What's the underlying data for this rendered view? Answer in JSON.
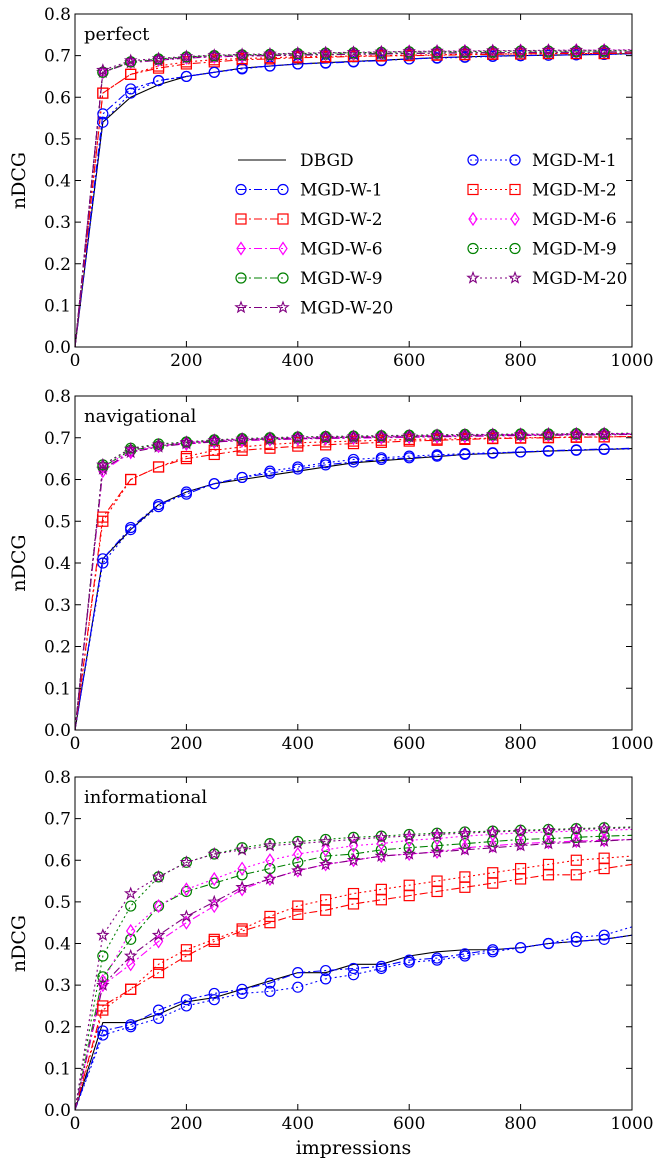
{
  "chart_data": [
    {
      "type": "line",
      "panel_label": "perfect",
      "ylabel": "nDCG",
      "xlabel": "",
      "xlim": [
        0,
        1000
      ],
      "ylim": [
        0.0,
        0.8
      ],
      "x_ticks": [
        "0",
        "200",
        "400",
        "600",
        "800",
        "1000"
      ],
      "y_ticks": [
        "0.0",
        "0.1",
        "0.2",
        "0.3",
        "0.4",
        "0.5",
        "0.6",
        "0.7",
        "0.8"
      ],
      "grid": false,
      "legend_position": "center-right",
      "x": [
        0,
        50,
        100,
        150,
        200,
        250,
        300,
        350,
        400,
        450,
        500,
        550,
        600,
        650,
        700,
        750,
        800,
        850,
        900,
        950,
        1000
      ],
      "series": [
        {
          "name": "DBGD",
          "values": [
            0.0,
            0.54,
            0.6,
            0.63,
            0.65,
            0.66,
            0.67,
            0.675,
            0.68,
            0.683,
            0.686,
            0.689,
            0.692,
            0.695,
            0.697,
            0.699,
            0.7,
            0.701,
            0.702,
            0.703,
            0.705
          ]
        },
        {
          "name": "MGD-W-1",
          "values": [
            0.0,
            0.56,
            0.62,
            0.64,
            0.65,
            0.66,
            0.67,
            0.675,
            0.68,
            0.682,
            0.685,
            0.688,
            0.692,
            0.695,
            0.697,
            0.699,
            0.7,
            0.701,
            0.702,
            0.703,
            0.705
          ]
        },
        {
          "name": "MGD-W-2",
          "values": [
            0.0,
            0.61,
            0.655,
            0.67,
            0.68,
            0.685,
            0.69,
            0.692,
            0.695,
            0.696,
            0.698,
            0.699,
            0.7,
            0.701,
            0.702,
            0.703,
            0.704,
            0.705,
            0.705,
            0.705,
            0.706
          ]
        },
        {
          "name": "MGD-W-6",
          "values": [
            0.0,
            0.66,
            0.685,
            0.69,
            0.695,
            0.697,
            0.699,
            0.7,
            0.702,
            0.703,
            0.704,
            0.705,
            0.706,
            0.706,
            0.707,
            0.707,
            0.708,
            0.708,
            0.708,
            0.709,
            0.709
          ]
        },
        {
          "name": "MGD-W-9",
          "values": [
            0.0,
            0.66,
            0.685,
            0.69,
            0.696,
            0.698,
            0.7,
            0.701,
            0.702,
            0.703,
            0.704,
            0.705,
            0.706,
            0.706,
            0.707,
            0.707,
            0.708,
            0.708,
            0.709,
            0.709,
            0.709
          ]
        },
        {
          "name": "MGD-W-20",
          "values": [
            0.0,
            0.66,
            0.683,
            0.689,
            0.694,
            0.697,
            0.699,
            0.7,
            0.701,
            0.702,
            0.703,
            0.704,
            0.705,
            0.706,
            0.706,
            0.707,
            0.707,
            0.708,
            0.708,
            0.708,
            0.709
          ]
        },
        {
          "name": "MGD-M-1",
          "values": [
            0.0,
            0.54,
            0.61,
            0.64,
            0.65,
            0.66,
            0.668,
            0.675,
            0.68,
            0.683,
            0.686,
            0.689,
            0.692,
            0.694,
            0.696,
            0.698,
            0.7,
            0.701,
            0.702,
            0.703,
            0.704
          ]
        },
        {
          "name": "MGD-M-2",
          "values": [
            0.0,
            0.61,
            0.655,
            0.675,
            0.685,
            0.69,
            0.693,
            0.695,
            0.697,
            0.698,
            0.699,
            0.7,
            0.701,
            0.702,
            0.703,
            0.704,
            0.704,
            0.705,
            0.705,
            0.705,
            0.706
          ]
        },
        {
          "name": "MGD-M-6",
          "values": [
            0.0,
            0.66,
            0.685,
            0.69,
            0.695,
            0.698,
            0.7,
            0.702,
            0.704,
            0.706,
            0.707,
            0.708,
            0.71,
            0.71,
            0.711,
            0.711,
            0.712,
            0.712,
            0.713,
            0.713,
            0.713
          ]
        },
        {
          "name": "MGD-M-9",
          "values": [
            0.0,
            0.66,
            0.685,
            0.692,
            0.697,
            0.7,
            0.702,
            0.703,
            0.705,
            0.706,
            0.707,
            0.708,
            0.709,
            0.709,
            0.71,
            0.71,
            0.711,
            0.711,
            0.711,
            0.712,
            0.712
          ]
        },
        {
          "name": "MGD-M-20",
          "values": [
            0.0,
            0.665,
            0.688,
            0.693,
            0.698,
            0.701,
            0.703,
            0.704,
            0.706,
            0.707,
            0.708,
            0.709,
            0.71,
            0.711,
            0.711,
            0.712,
            0.712,
            0.713,
            0.713,
            0.713,
            0.714
          ]
        }
      ]
    },
    {
      "type": "line",
      "panel_label": "navigational",
      "ylabel": "nDCG",
      "xlabel": "",
      "xlim": [
        0,
        1000
      ],
      "ylim": [
        0.0,
        0.8
      ],
      "x_ticks": [
        "0",
        "200",
        "400",
        "600",
        "800",
        "1000"
      ],
      "y_ticks": [
        "0.0",
        "0.1",
        "0.2",
        "0.3",
        "0.4",
        "0.5",
        "0.6",
        "0.7",
        "0.8"
      ],
      "grid": false,
      "x": [
        0,
        50,
        100,
        150,
        200,
        250,
        300,
        350,
        400,
        450,
        500,
        550,
        600,
        650,
        700,
        750,
        800,
        850,
        900,
        950,
        1000
      ],
      "series": [
        {
          "name": "DBGD",
          "values": [
            0.0,
            0.41,
            0.48,
            0.54,
            0.57,
            0.59,
            0.6,
            0.61,
            0.62,
            0.63,
            0.64,
            0.645,
            0.65,
            0.655,
            0.66,
            0.662,
            0.665,
            0.668,
            0.67,
            0.672,
            0.674
          ]
        },
        {
          "name": "MGD-W-1",
          "values": [
            0.0,
            0.41,
            0.485,
            0.54,
            0.565,
            0.59,
            0.605,
            0.615,
            0.625,
            0.635,
            0.642,
            0.648,
            0.652,
            0.656,
            0.66,
            0.663,
            0.666,
            0.669,
            0.671,
            0.673,
            0.675
          ]
        },
        {
          "name": "MGD-W-2",
          "values": [
            0.0,
            0.51,
            0.6,
            0.63,
            0.65,
            0.66,
            0.67,
            0.675,
            0.68,
            0.683,
            0.686,
            0.689,
            0.692,
            0.694,
            0.696,
            0.698,
            0.699,
            0.7,
            0.701,
            0.702,
            0.703
          ]
        },
        {
          "name": "MGD-W-6",
          "values": [
            0.0,
            0.62,
            0.665,
            0.68,
            0.685,
            0.69,
            0.693,
            0.695,
            0.697,
            0.698,
            0.699,
            0.7,
            0.701,
            0.702,
            0.703,
            0.704,
            0.705,
            0.706,
            0.707,
            0.707,
            0.708
          ]
        },
        {
          "name": "MGD-W-9",
          "values": [
            0.0,
            0.63,
            0.67,
            0.68,
            0.688,
            0.692,
            0.695,
            0.697,
            0.699,
            0.7,
            0.701,
            0.702,
            0.703,
            0.704,
            0.705,
            0.706,
            0.707,
            0.707,
            0.708,
            0.708,
            0.709
          ]
        },
        {
          "name": "MGD-W-20",
          "values": [
            0.0,
            0.625,
            0.665,
            0.678,
            0.686,
            0.69,
            0.694,
            0.696,
            0.698,
            0.699,
            0.7,
            0.701,
            0.702,
            0.703,
            0.704,
            0.705,
            0.706,
            0.706,
            0.707,
            0.707,
            0.708
          ]
        },
        {
          "name": "MGD-M-1",
          "values": [
            0.0,
            0.4,
            0.48,
            0.535,
            0.57,
            0.59,
            0.605,
            0.62,
            0.63,
            0.64,
            0.648,
            0.652,
            0.656,
            0.659,
            0.662,
            0.664,
            0.666,
            0.668,
            0.67,
            0.672,
            0.673
          ]
        },
        {
          "name": "MGD-M-2",
          "values": [
            0.0,
            0.5,
            0.6,
            0.63,
            0.655,
            0.67,
            0.678,
            0.684,
            0.688,
            0.69,
            0.692,
            0.694,
            0.696,
            0.697,
            0.698,
            0.699,
            0.7,
            0.701,
            0.702,
            0.702,
            0.703
          ]
        },
        {
          "name": "MGD-M-6",
          "values": [
            0.0,
            0.63,
            0.668,
            0.68,
            0.688,
            0.693,
            0.696,
            0.698,
            0.7,
            0.701,
            0.702,
            0.703,
            0.704,
            0.705,
            0.706,
            0.707,
            0.708,
            0.708,
            0.709,
            0.709,
            0.71
          ]
        },
        {
          "name": "MGD-M-9",
          "values": [
            0.0,
            0.635,
            0.675,
            0.685,
            0.69,
            0.695,
            0.698,
            0.7,
            0.702,
            0.703,
            0.704,
            0.705,
            0.706,
            0.707,
            0.708,
            0.708,
            0.709,
            0.709,
            0.71,
            0.71,
            0.711
          ]
        },
        {
          "name": "MGD-M-20",
          "values": [
            0.0,
            0.635,
            0.673,
            0.683,
            0.689,
            0.694,
            0.697,
            0.699,
            0.701,
            0.702,
            0.703,
            0.704,
            0.705,
            0.706,
            0.707,
            0.708,
            0.708,
            0.709,
            0.709,
            0.71,
            0.71
          ]
        }
      ]
    },
    {
      "type": "line",
      "panel_label": "informational",
      "ylabel": "nDCG",
      "xlabel": "impressions",
      "xlim": [
        0,
        1000
      ],
      "ylim": [
        0.0,
        0.8
      ],
      "x_ticks": [
        "0",
        "200",
        "400",
        "600",
        "800",
        "1000"
      ],
      "y_ticks": [
        "0.0",
        "0.1",
        "0.2",
        "0.3",
        "0.4",
        "0.5",
        "0.6",
        "0.7",
        "0.8"
      ],
      "grid": false,
      "x": [
        0,
        50,
        100,
        150,
        200,
        250,
        300,
        350,
        400,
        450,
        500,
        550,
        600,
        650,
        700,
        750,
        800,
        850,
        900,
        950,
        1000
      ],
      "series": [
        {
          "name": "DBGD",
          "values": [
            0.0,
            0.21,
            0.21,
            0.23,
            0.26,
            0.27,
            0.29,
            0.31,
            0.33,
            0.33,
            0.35,
            0.35,
            0.37,
            0.38,
            0.385,
            0.385,
            0.39,
            0.4,
            0.405,
            0.41,
            0.42
          ]
        },
        {
          "name": "MGD-W-1",
          "values": [
            0.0,
            0.19,
            0.205,
            0.24,
            0.265,
            0.28,
            0.29,
            0.305,
            0.33,
            0.335,
            0.34,
            0.345,
            0.36,
            0.365,
            0.375,
            0.385,
            0.39,
            0.4,
            0.405,
            0.41,
            0.42
          ]
        },
        {
          "name": "MGD-W-2",
          "values": [
            0.0,
            0.25,
            0.29,
            0.33,
            0.37,
            0.405,
            0.43,
            0.45,
            0.47,
            0.48,
            0.495,
            0.505,
            0.515,
            0.525,
            0.535,
            0.545,
            0.555,
            0.565,
            0.565,
            0.58,
            0.59
          ]
        },
        {
          "name": "MGD-W-6",
          "values": [
            0.0,
            0.3,
            0.35,
            0.405,
            0.45,
            0.49,
            0.53,
            0.555,
            0.575,
            0.59,
            0.6,
            0.61,
            0.615,
            0.62,
            0.63,
            0.635,
            0.64,
            0.643,
            0.646,
            0.648,
            0.65
          ]
        },
        {
          "name": "MGD-W-9",
          "values": [
            0.0,
            0.32,
            0.41,
            0.49,
            0.525,
            0.545,
            0.565,
            0.58,
            0.595,
            0.61,
            0.615,
            0.625,
            0.63,
            0.635,
            0.64,
            0.645,
            0.65,
            0.652,
            0.655,
            0.658,
            0.66
          ]
        },
        {
          "name": "MGD-W-20",
          "values": [
            0.0,
            0.3,
            0.37,
            0.42,
            0.465,
            0.5,
            0.535,
            0.555,
            0.575,
            0.59,
            0.6,
            0.61,
            0.615,
            0.62,
            0.625,
            0.63,
            0.635,
            0.64,
            0.643,
            0.646,
            0.65
          ]
        },
        {
          "name": "MGD-M-1",
          "values": [
            0.0,
            0.18,
            0.2,
            0.22,
            0.25,
            0.265,
            0.28,
            0.285,
            0.295,
            0.315,
            0.325,
            0.34,
            0.355,
            0.36,
            0.37,
            0.38,
            0.39,
            0.4,
            0.415,
            0.42,
            0.44
          ]
        },
        {
          "name": "MGD-M-2",
          "values": [
            0.0,
            0.24,
            0.29,
            0.35,
            0.385,
            0.41,
            0.435,
            0.465,
            0.49,
            0.505,
            0.52,
            0.53,
            0.54,
            0.55,
            0.56,
            0.57,
            0.58,
            0.59,
            0.6,
            0.605,
            0.61
          ]
        },
        {
          "name": "MGD-M-6",
          "values": [
            0.0,
            0.31,
            0.43,
            0.49,
            0.53,
            0.555,
            0.58,
            0.6,
            0.615,
            0.625,
            0.635,
            0.64,
            0.648,
            0.652,
            0.658,
            0.662,
            0.666,
            0.668,
            0.67,
            0.672,
            0.674
          ]
        },
        {
          "name": "MGD-M-9",
          "values": [
            0.0,
            0.37,
            0.49,
            0.56,
            0.595,
            0.615,
            0.63,
            0.64,
            0.645,
            0.65,
            0.655,
            0.658,
            0.662,
            0.665,
            0.668,
            0.67,
            0.672,
            0.674,
            0.676,
            0.678,
            0.68
          ]
        },
        {
          "name": "MGD-M-20",
          "values": [
            0.0,
            0.42,
            0.52,
            0.56,
            0.595,
            0.615,
            0.625,
            0.635,
            0.64,
            0.645,
            0.65,
            0.655,
            0.658,
            0.662,
            0.665,
            0.668,
            0.67,
            0.672,
            0.674,
            0.676,
            0.678
          ]
        }
      ]
    }
  ],
  "series_styles": {
    "DBGD": {
      "color": "#000000",
      "dash": "solid",
      "marker": "none"
    },
    "MGD-W-1": {
      "color": "#0000ff",
      "dash": "dash-dot",
      "marker": "circle"
    },
    "MGD-W-2": {
      "color": "#ff0000",
      "dash": "dash-dot",
      "marker": "square"
    },
    "MGD-W-6": {
      "color": "#ff00ff",
      "dash": "dash-dot",
      "marker": "diamond"
    },
    "MGD-W-9": {
      "color": "#008000",
      "dash": "dash-dot",
      "marker": "circle"
    },
    "MGD-W-20": {
      "color": "#800080",
      "dash": "dash-dot",
      "marker": "star"
    },
    "MGD-M-1": {
      "color": "#0000ff",
      "dash": "dotted",
      "marker": "circle"
    },
    "MGD-M-2": {
      "color": "#ff0000",
      "dash": "dotted",
      "marker": "square"
    },
    "MGD-M-6": {
      "color": "#ff00ff",
      "dash": "dotted",
      "marker": "diamond"
    },
    "MGD-M-9": {
      "color": "#008000",
      "dash": "dotted",
      "marker": "circle"
    },
    "MGD-M-20": {
      "color": "#800080",
      "dash": "dotted",
      "marker": "star"
    }
  },
  "legend": {
    "columns": [
      [
        "DBGD",
        "MGD-W-1",
        "MGD-W-2",
        "MGD-W-6",
        "MGD-W-9",
        "MGD-W-20"
      ],
      [
        "MGD-M-1",
        "MGD-M-2",
        "MGD-M-6",
        "MGD-M-9",
        "MGD-M-20"
      ]
    ]
  }
}
